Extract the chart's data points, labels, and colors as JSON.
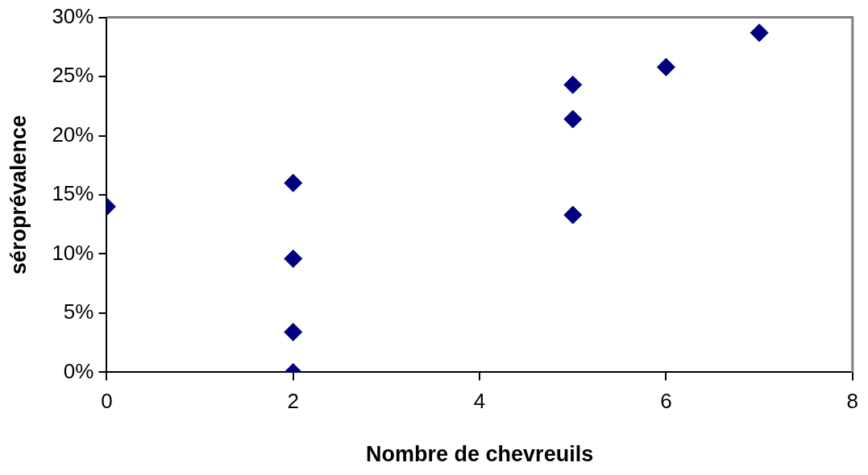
{
  "chart_data": {
    "type": "scatter",
    "xlabel": "Nombre de chevreuils",
    "ylabel": "séroprévalence",
    "x": [
      0,
      2,
      2,
      2,
      2,
      5,
      5,
      5,
      6,
      7
    ],
    "values": [
      14,
      16,
      9.6,
      3.4,
      0,
      24.3,
      21.4,
      13.3,
      25.8,
      28.7
    ],
    "color": "#000080",
    "marker": "diamond",
    "grid": false,
    "legend": false,
    "xlim": [
      0,
      8
    ],
    "xticks": [
      0,
      2,
      4,
      6,
      8
    ],
    "ylim": [
      0,
      30
    ],
    "yticks": [
      {
        "value": 0,
        "label": "0%"
      },
      {
        "value": 5,
        "label": "5%"
      },
      {
        "value": 10,
        "label": "10%"
      },
      {
        "value": 15,
        "label": "15%"
      },
      {
        "value": 20,
        "label": "20%"
      },
      {
        "value": 25,
        "label": "25%"
      },
      {
        "value": 30,
        "label": "30%"
      }
    ]
  }
}
